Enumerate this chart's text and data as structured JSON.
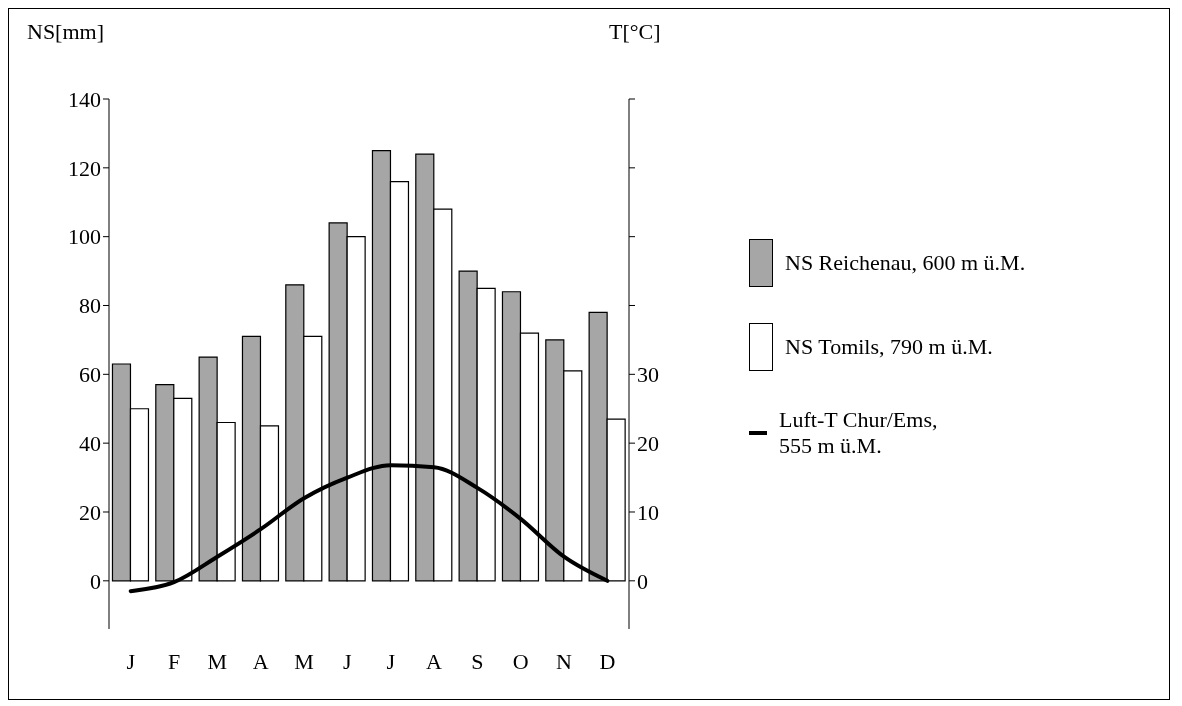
{
  "chart_data": {
    "type": "bar",
    "ylabel": "NS[mm]",
    "y2label": "T[°C]",
    "categories": [
      "J",
      "F",
      "M",
      "A",
      "M",
      "J",
      "J",
      "A",
      "S",
      "O",
      "N",
      "D"
    ],
    "series": [
      {
        "name": "NS Reichenau, 600 m ü.M.",
        "color": "#a6a6a6",
        "values": [
          63,
          57,
          65,
          71,
          86,
          104,
          125,
          124,
          90,
          84,
          70,
          78
        ]
      },
      {
        "name": "NS Tomils, 790 m ü.M.",
        "color": "#ffffff",
        "values": [
          50,
          53,
          46,
          45,
          71,
          100,
          116,
          108,
          85,
          72,
          61,
          47
        ]
      },
      {
        "name": "Luft-T Chur/Ems, 555 m ü.M.",
        "type": "line",
        "axis": "y2",
        "color": "#000000",
        "values": [
          -1.5,
          -0.2,
          3.5,
          7.5,
          12,
          15,
          16.8,
          16.5,
          13.5,
          9,
          3.5,
          0
        ]
      }
    ],
    "ylim": [
      -14,
      140
    ],
    "yticks": [
      0,
      20,
      40,
      60,
      80,
      100,
      120,
      140
    ],
    "y2lim": [
      -7,
      70
    ],
    "y2ticks": [
      0,
      10,
      20,
      30,
      {
        "value": 40,
        "label": null
      },
      {
        "value": 50,
        "label": null
      },
      {
        "value": 60,
        "label": null
      },
      {
        "value": 70,
        "label": null
      }
    ],
    "legend": "right",
    "marker": "none",
    "line_style": "solid"
  }
}
